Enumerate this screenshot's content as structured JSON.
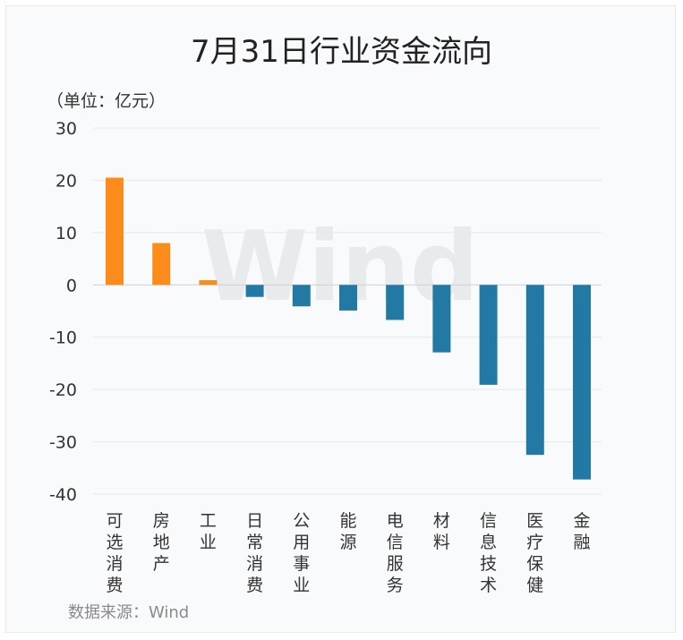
{
  "title": "7月31日行业资金流向",
  "unit_label": "（单位：亿元）",
  "source": "数据来源：Wind",
  "watermark": "Wind",
  "colors": {
    "positive": "#fb8c1c",
    "negative": "#2279a3",
    "grid": "#e8e8e8"
  },
  "chart_data": {
    "type": "bar",
    "title": "7月31日行业资金流向",
    "ylabel": "（单位：亿元）",
    "ylim": [
      -40,
      30
    ],
    "yticks": [
      30,
      20,
      10,
      0,
      -10,
      -20,
      -30,
      -40
    ],
    "grid": true,
    "categories": [
      "可选消费",
      "房地产",
      "工业",
      "日常消费",
      "公用事业",
      "能源",
      "电信服务",
      "材料",
      "信息技术",
      "医疗保健",
      "金融"
    ],
    "values": [
      20.5,
      8.0,
      0.9,
      -2.3,
      -4.1,
      -4.9,
      -6.7,
      -12.9,
      -19.1,
      -32.5,
      -37.2
    ]
  }
}
